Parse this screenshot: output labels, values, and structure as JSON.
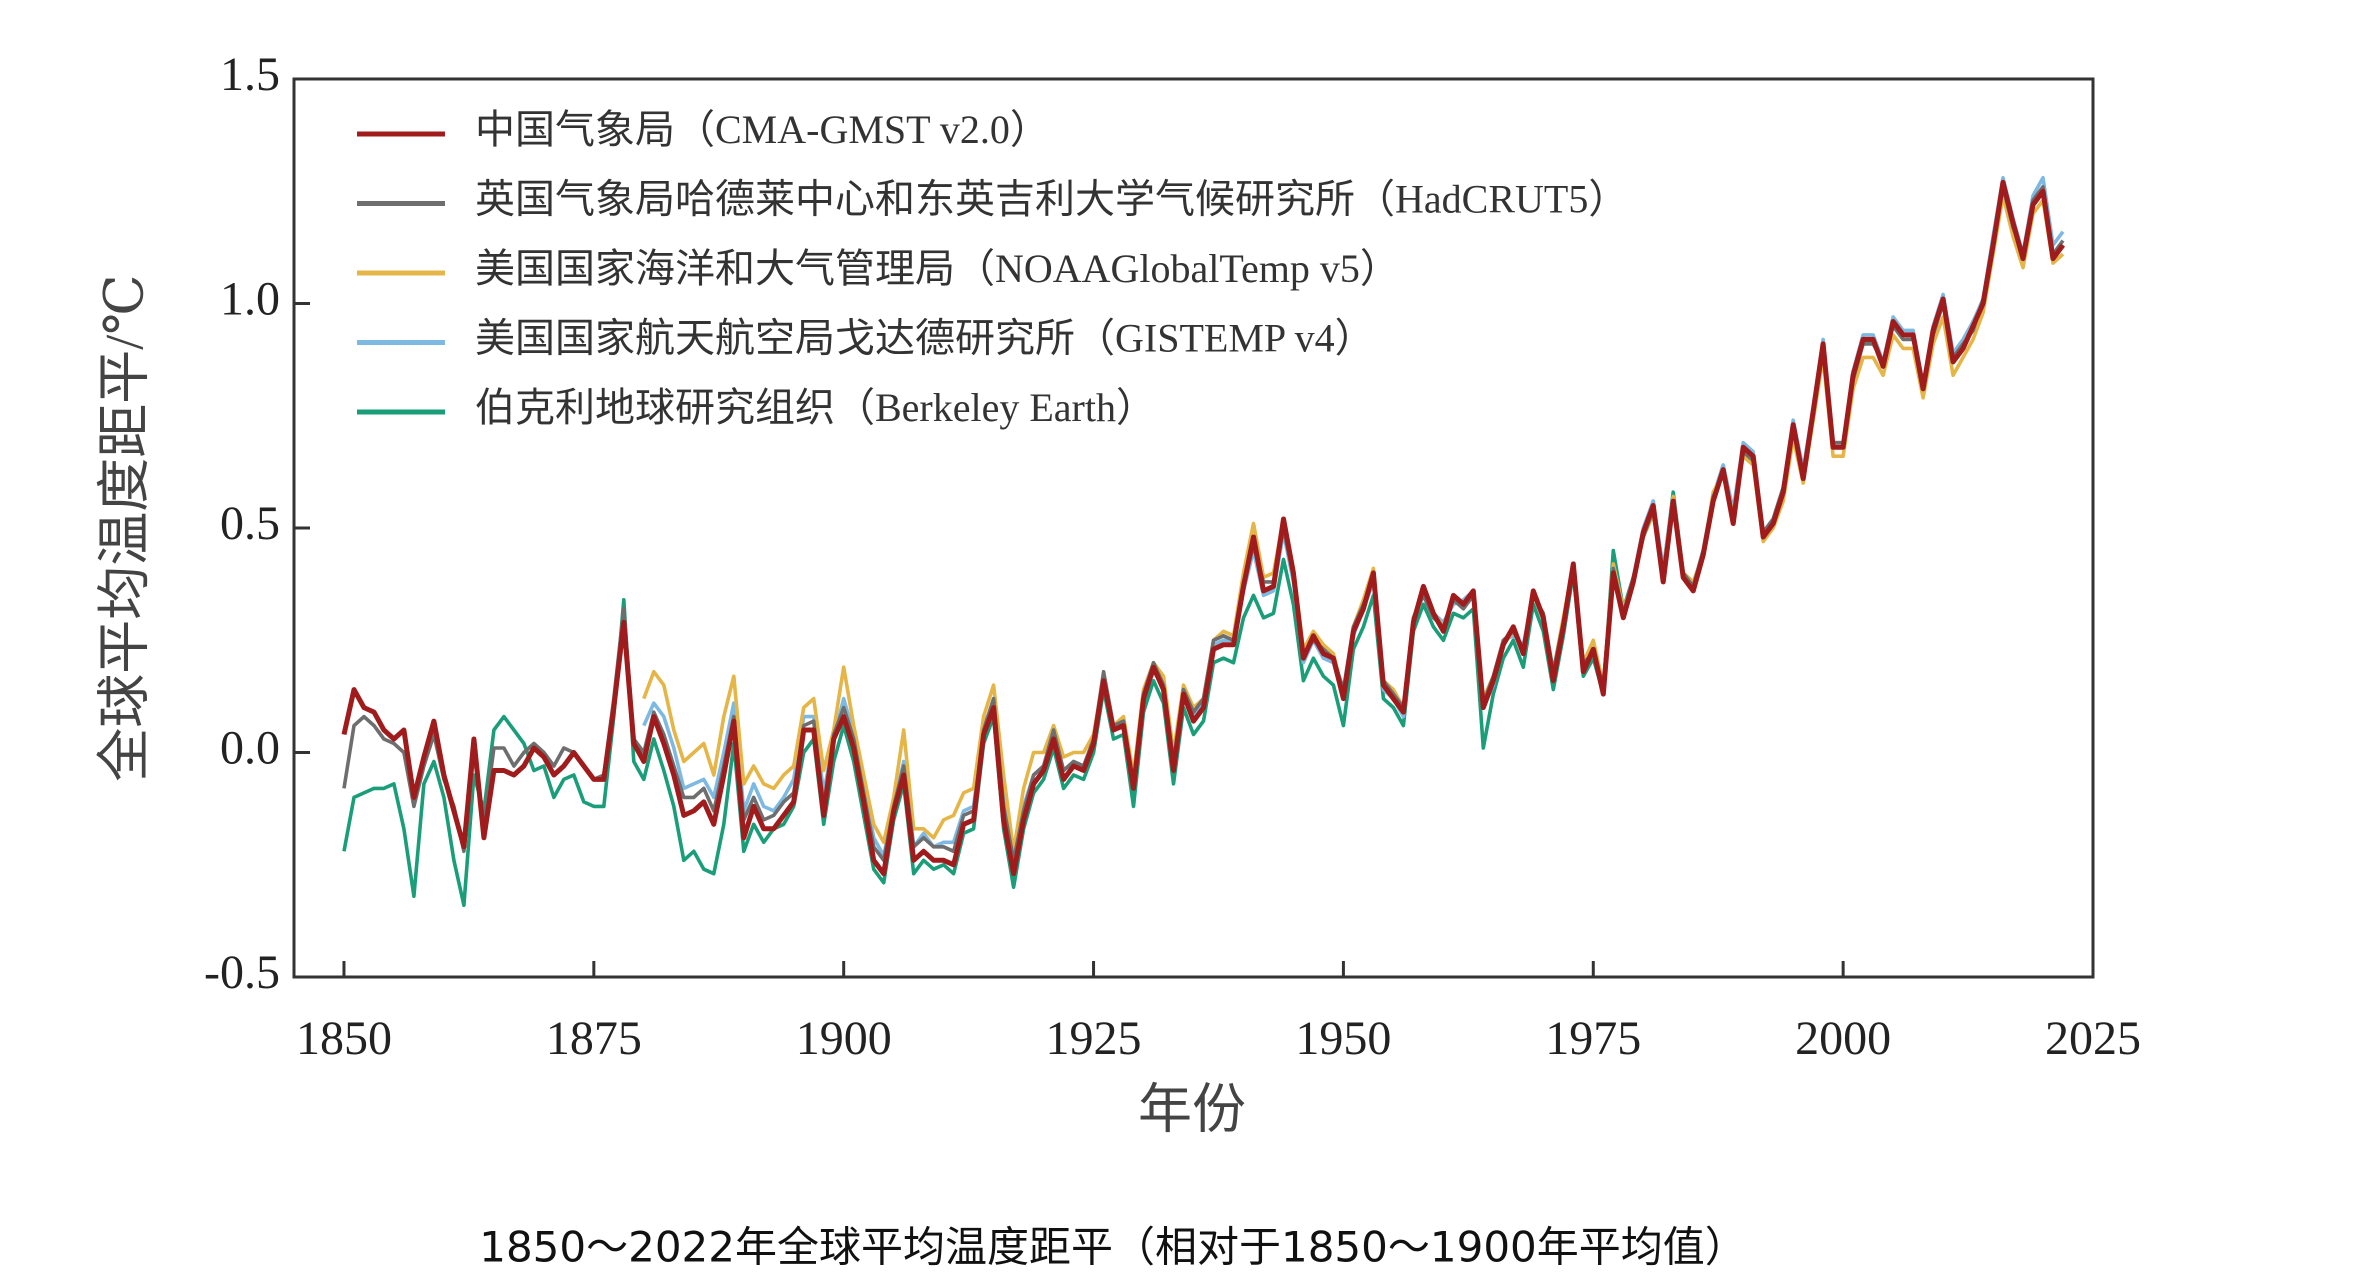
{
  "chart_data": {
    "type": "line",
    "caption": "1850～2022年全球平均温度距平（相对于1850～1900年平均值）",
    "xlabel": "年份",
    "ylabel": "全球平均温度距平/℃",
    "xlim": [
      1845,
      2025
    ],
    "ylim": [
      -0.5,
      1.5
    ],
    "xticks": [
      1850,
      1875,
      1900,
      1925,
      1950,
      1975,
      2000,
      2025
    ],
    "yticks": [
      {
        "value": -0.5,
        "label": "-0.5"
      },
      {
        "value": 0,
        "label": "0.0"
      },
      {
        "value": 0.5,
        "label": "0.5"
      },
      {
        "value": 1,
        "label": "1.0"
      },
      {
        "value": 1.5,
        "label": "1.5"
      }
    ],
    "legend": "upper left",
    "x": [
      1850,
      1851,
      1852,
      1853,
      1854,
      1855,
      1856,
      1857,
      1858,
      1859,
      1860,
      1861,
      1862,
      1863,
      1864,
      1865,
      1866,
      1867,
      1868,
      1869,
      1870,
      1871,
      1872,
      1873,
      1874,
      1875,
      1876,
      1877,
      1878,
      1879,
      1880,
      1881,
      1882,
      1883,
      1884,
      1885,
      1886,
      1887,
      1888,
      1889,
      1890,
      1891,
      1892,
      1893,
      1894,
      1895,
      1896,
      1897,
      1898,
      1899,
      1900,
      1901,
      1902,
      1903,
      1904,
      1905,
      1906,
      1907,
      1908,
      1909,
      1910,
      1911,
      1912,
      1913,
      1914,
      1915,
      1916,
      1917,
      1918,
      1919,
      1920,
      1921,
      1922,
      1923,
      1924,
      1925,
      1926,
      1927,
      1928,
      1929,
      1930,
      1931,
      1932,
      1933,
      1934,
      1935,
      1936,
      1937,
      1938,
      1939,
      1940,
      1941,
      1942,
      1943,
      1944,
      1945,
      1946,
      1947,
      1948,
      1949,
      1950,
      1951,
      1952,
      1953,
      1954,
      1955,
      1956,
      1957,
      1958,
      1959,
      1960,
      1961,
      1962,
      1963,
      1964,
      1965,
      1966,
      1967,
      1968,
      1969,
      1970,
      1971,
      1972,
      1973,
      1974,
      1975,
      1976,
      1977,
      1978,
      1979,
      1980,
      1981,
      1982,
      1983,
      1984,
      1985,
      1986,
      1987,
      1988,
      1989,
      1990,
      1991,
      1992,
      1993,
      1994,
      1995,
      1996,
      1997,
      1998,
      1999,
      2000,
      2001,
      2002,
      2003,
      2004,
      2005,
      2006,
      2007,
      2008,
      2009,
      2010,
      2011,
      2012,
      2013,
      2014,
      2015,
      2016,
      2017,
      2018,
      2019,
      2020,
      2021,
      2022
    ],
    "series": [
      {
        "name": "中国气象局（CMA-GMST v2.0）",
        "color": "#a01c1c",
        "values": [
          0.04,
          0.14,
          0.1,
          0.09,
          0.05,
          0.03,
          0.05,
          -0.1,
          -0.01,
          0.07,
          -0.05,
          -0.13,
          -0.21,
          0.03,
          -0.19,
          -0.04,
          -0.04,
          -0.05,
          -0.03,
          0.01,
          -0.01,
          -0.05,
          -0.03,
          0.0,
          -0.03,
          -0.06,
          -0.06,
          0.1,
          0.29,
          0.02,
          -0.02,
          0.08,
          0.02,
          -0.05,
          -0.14,
          -0.13,
          -0.11,
          -0.16,
          -0.05,
          0.07,
          -0.19,
          -0.12,
          -0.17,
          -0.17,
          -0.14,
          -0.11,
          0.05,
          0.05,
          -0.14,
          0.03,
          0.08,
          0.01,
          -0.11,
          -0.24,
          -0.27,
          -0.13,
          -0.05,
          -0.24,
          -0.22,
          -0.24,
          -0.24,
          -0.25,
          -0.16,
          -0.15,
          0.04,
          0.1,
          -0.15,
          -0.27,
          -0.15,
          -0.07,
          -0.04,
          0.03,
          -0.06,
          -0.03,
          -0.04,
          0.02,
          0.16,
          0.05,
          0.06,
          -0.08,
          0.12,
          0.19,
          0.14,
          -0.04,
          0.13,
          0.07,
          0.1,
          0.23,
          0.24,
          0.24,
          0.37,
          0.48,
          0.36,
          0.37,
          0.52,
          0.4,
          0.21,
          0.26,
          0.22,
          0.21,
          0.12,
          0.27,
          0.32,
          0.4,
          0.15,
          0.12,
          0.09,
          0.29,
          0.37,
          0.31,
          0.27,
          0.35,
          0.33,
          0.36,
          0.1,
          0.16,
          0.24,
          0.28,
          0.22,
          0.36,
          0.3,
          0.16,
          0.28,
          0.42,
          0.18,
          0.23,
          0.13,
          0.4,
          0.3,
          0.38,
          0.49,
          0.55,
          0.38,
          0.56,
          0.39,
          0.36,
          0.44,
          0.56,
          0.63,
          0.51,
          0.68,
          0.66,
          0.48,
          0.51,
          0.58,
          0.73,
          0.61,
          0.76,
          0.91,
          0.68,
          0.68,
          0.84,
          0.92,
          0.92,
          0.86,
          0.96,
          0.93,
          0.93,
          0.81,
          0.94,
          1.01,
          0.87,
          0.9,
          0.95,
          1.0,
          1.13,
          1.27,
          1.18,
          1.1,
          1.22,
          1.25,
          1.1,
          1.13
        ]
      },
      {
        "name": "英国气象局哈德莱中心和东英吉利大学气候研究所（HadCRUT5）",
        "color": "#6e6e6e",
        "values": [
          -0.08,
          0.06,
          0.08,
          0.06,
          0.03,
          0.02,
          0.0,
          -0.12,
          -0.03,
          0.04,
          -0.06,
          -0.12,
          -0.22,
          0.0,
          -0.16,
          0.01,
          0.01,
          -0.03,
          0.0,
          0.02,
          0.0,
          -0.03,
          0.01,
          0.0,
          -0.03,
          -0.06,
          -0.05,
          0.12,
          0.32,
          0.03,
          0.0,
          0.09,
          0.04,
          -0.03,
          -0.1,
          -0.1,
          -0.08,
          -0.13,
          -0.03,
          0.08,
          -0.15,
          -0.1,
          -0.15,
          -0.14,
          -0.11,
          -0.09,
          0.06,
          0.07,
          -0.12,
          0.04,
          0.1,
          0.03,
          -0.09,
          -0.21,
          -0.24,
          -0.12,
          -0.03,
          -0.21,
          -0.19,
          -0.21,
          -0.21,
          -0.22,
          -0.14,
          -0.13,
          0.05,
          0.12,
          -0.12,
          -0.24,
          -0.13,
          -0.05,
          -0.03,
          0.05,
          -0.04,
          -0.02,
          -0.03,
          0.03,
          0.18,
          0.06,
          0.07,
          -0.07,
          0.13,
          0.2,
          0.15,
          -0.02,
          0.14,
          0.09,
          0.12,
          0.25,
          0.26,
          0.25,
          0.38,
          0.46,
          0.38,
          0.38,
          0.5,
          0.39,
          0.22,
          0.25,
          0.23,
          0.21,
          0.14,
          0.28,
          0.33,
          0.39,
          0.16,
          0.13,
          0.1,
          0.3,
          0.35,
          0.3,
          0.28,
          0.34,
          0.32,
          0.35,
          0.11,
          0.17,
          0.25,
          0.27,
          0.23,
          0.35,
          0.31,
          0.18,
          0.29,
          0.41,
          0.2,
          0.22,
          0.15,
          0.41,
          0.31,
          0.39,
          0.48,
          0.54,
          0.4,
          0.55,
          0.4,
          0.37,
          0.45,
          0.57,
          0.62,
          0.52,
          0.67,
          0.65,
          0.49,
          0.52,
          0.59,
          0.72,
          0.62,
          0.75,
          0.9,
          0.69,
          0.69,
          0.83,
          0.91,
          0.91,
          0.87,
          0.95,
          0.92,
          0.92,
          0.82,
          0.93,
          1.0,
          0.88,
          0.91,
          0.94,
          1.01,
          1.14,
          1.26,
          1.17,
          1.11,
          1.23,
          1.26,
          1.11,
          1.14
        ]
      },
      {
        "name": "美国国家海洋和大气管理局（NOAAGlobalTemp v5）",
        "color": "#e6b547",
        "values": [
          null,
          null,
          null,
          null,
          null,
          null,
          null,
          null,
          null,
          null,
          null,
          null,
          null,
          null,
          null,
          null,
          null,
          null,
          null,
          null,
          null,
          null,
          null,
          null,
          null,
          null,
          null,
          null,
          null,
          null,
          0.12,
          0.18,
          0.15,
          0.05,
          -0.02,
          0.0,
          0.02,
          -0.05,
          0.08,
          0.17,
          -0.07,
          -0.03,
          -0.07,
          -0.08,
          -0.05,
          -0.03,
          0.1,
          0.12,
          -0.04,
          0.05,
          0.19,
          0.06,
          -0.05,
          -0.16,
          -0.2,
          -0.1,
          0.05,
          -0.17,
          -0.17,
          -0.19,
          -0.15,
          -0.14,
          -0.09,
          -0.08,
          0.08,
          0.15,
          -0.05,
          -0.22,
          -0.08,
          0.0,
          0.0,
          0.06,
          -0.01,
          0.0,
          0.0,
          0.04,
          0.17,
          0.06,
          0.08,
          -0.05,
          0.14,
          0.2,
          0.17,
          0.0,
          0.15,
          0.1,
          0.12,
          0.25,
          0.27,
          0.26,
          0.4,
          0.51,
          0.39,
          0.4,
          0.52,
          0.41,
          0.23,
          0.27,
          0.24,
          0.22,
          0.13,
          0.28,
          0.34,
          0.41,
          0.16,
          0.14,
          0.1,
          0.29,
          0.36,
          0.31,
          0.28,
          0.34,
          0.33,
          0.35,
          0.12,
          0.17,
          0.24,
          0.27,
          0.23,
          0.35,
          0.3,
          0.18,
          0.3,
          0.42,
          0.2,
          0.25,
          0.15,
          0.42,
          0.32,
          0.38,
          0.48,
          0.53,
          0.4,
          0.57,
          0.4,
          0.38,
          0.44,
          0.58,
          0.62,
          0.53,
          0.66,
          0.64,
          0.47,
          0.5,
          0.56,
          0.7,
          0.6,
          0.74,
          0.88,
          0.66,
          0.66,
          0.81,
          0.88,
          0.88,
          0.84,
          0.93,
          0.9,
          0.9,
          0.79,
          0.91,
          0.97,
          0.84,
          0.88,
          0.92,
          0.98,
          1.11,
          1.24,
          1.15,
          1.08,
          1.2,
          1.23,
          1.09,
          1.11
        ]
      },
      {
        "name": "美国国家航天航空局戈达德研究所（GISTEMP v4）",
        "color": "#7eb9e2",
        "values": [
          null,
          null,
          null,
          null,
          null,
          null,
          null,
          null,
          null,
          null,
          null,
          null,
          null,
          null,
          null,
          null,
          null,
          null,
          null,
          null,
          null,
          null,
          null,
          null,
          null,
          null,
          null,
          null,
          null,
          null,
          0.06,
          0.11,
          0.08,
          0.01,
          -0.08,
          -0.07,
          -0.06,
          -0.1,
          0.0,
          0.11,
          -0.13,
          -0.07,
          -0.12,
          -0.13,
          -0.1,
          -0.06,
          0.08,
          0.08,
          -0.09,
          0.03,
          0.12,
          0.04,
          -0.07,
          -0.19,
          -0.23,
          -0.12,
          -0.02,
          -0.21,
          -0.18,
          -0.21,
          -0.2,
          -0.2,
          -0.13,
          -0.12,
          0.06,
          0.11,
          -0.1,
          -0.24,
          -0.12,
          -0.05,
          -0.03,
          0.04,
          -0.04,
          -0.02,
          -0.03,
          0.02,
          0.16,
          0.06,
          0.06,
          -0.06,
          0.12,
          0.18,
          0.15,
          -0.03,
          0.14,
          0.08,
          0.11,
          0.24,
          0.25,
          0.25,
          0.36,
          0.45,
          0.35,
          0.36,
          0.49,
          0.38,
          0.2,
          0.25,
          0.21,
          0.2,
          0.12,
          0.26,
          0.32,
          0.38,
          0.14,
          0.12,
          0.08,
          0.3,
          0.36,
          0.31,
          0.29,
          0.33,
          0.34,
          0.36,
          0.1,
          0.15,
          0.25,
          0.26,
          0.24,
          0.35,
          0.3,
          0.17,
          0.28,
          0.42,
          0.19,
          0.22,
          0.14,
          0.41,
          0.31,
          0.39,
          0.5,
          0.56,
          0.41,
          0.57,
          0.4,
          0.37,
          0.45,
          0.57,
          0.64,
          0.54,
          0.69,
          0.67,
          0.49,
          0.52,
          0.59,
          0.74,
          0.63,
          0.77,
          0.92,
          0.69,
          0.69,
          0.85,
          0.93,
          0.93,
          0.87,
          0.97,
          0.94,
          0.94,
          0.82,
          0.95,
          1.02,
          0.89,
          0.92,
          0.96,
          1.01,
          1.15,
          1.28,
          1.19,
          1.11,
          1.24,
          1.28,
          1.13,
          1.16
        ]
      },
      {
        "name": "伯克利地球研究组织（Berkeley Earth）",
        "color": "#1a9e7a",
        "values": [
          -0.22,
          -0.1,
          -0.09,
          -0.08,
          -0.08,
          -0.07,
          -0.17,
          -0.32,
          -0.07,
          -0.02,
          -0.1,
          -0.24,
          -0.34,
          -0.05,
          -0.13,
          0.05,
          0.08,
          0.05,
          0.02,
          -0.04,
          -0.03,
          -0.1,
          -0.06,
          -0.05,
          -0.11,
          -0.12,
          -0.12,
          0.08,
          0.34,
          -0.02,
          -0.06,
          0.03,
          -0.04,
          -0.12,
          -0.24,
          -0.22,
          -0.26,
          -0.27,
          -0.16,
          0.02,
          -0.22,
          -0.16,
          -0.2,
          -0.17,
          -0.16,
          -0.12,
          0.0,
          0.03,
          -0.16,
          -0.02,
          0.06,
          -0.02,
          -0.14,
          -0.26,
          -0.29,
          -0.15,
          -0.07,
          -0.27,
          -0.24,
          -0.26,
          -0.25,
          -0.27,
          -0.18,
          -0.17,
          0.02,
          0.08,
          -0.17,
          -0.3,
          -0.17,
          -0.09,
          -0.06,
          0.01,
          -0.08,
          -0.05,
          -0.06,
          0.0,
          0.14,
          0.03,
          0.04,
          -0.12,
          0.09,
          0.16,
          0.11,
          -0.07,
          0.1,
          0.04,
          0.07,
          0.2,
          0.21,
          0.2,
          0.3,
          0.35,
          0.3,
          0.31,
          0.43,
          0.33,
          0.16,
          0.21,
          0.17,
          0.15,
          0.06,
          0.23,
          0.28,
          0.35,
          0.12,
          0.1,
          0.06,
          0.27,
          0.33,
          0.28,
          0.25,
          0.31,
          0.3,
          0.32,
          0.01,
          0.13,
          0.21,
          0.25,
          0.19,
          0.33,
          0.27,
          0.14,
          0.26,
          0.4,
          0.17,
          0.21,
          0.13,
          0.45,
          0.32,
          0.39,
          0.48,
          0.56,
          0.4,
          0.58,
          0.4,
          0.37,
          0.45,
          0.57,
          0.64,
          0.52,
          0.68,
          0.66,
          0.49,
          0.52,
          0.59,
          0.73,
          0.62,
          0.76,
          0.9,
          0.68,
          0.68,
          0.84,
          0.91,
          0.92,
          0.86,
          0.96,
          0.93,
          0.93,
          0.82,
          0.94,
          1.01,
          0.88,
          0.91,
          0.96,
          1.0,
          1.13,
          1.26,
          1.17,
          1.1,
          1.22,
          1.26,
          1.1,
          1.13
        ]
      }
    ]
  }
}
